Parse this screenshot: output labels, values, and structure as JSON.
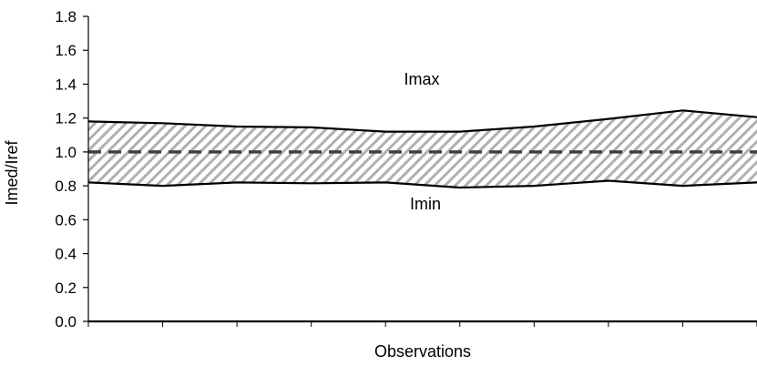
{
  "chart_data": {
    "type": "area",
    "title": "",
    "xlabel": "Observations",
    "ylabel": "Imed/Iref",
    "ylim": [
      0.0,
      1.8
    ],
    "yticks": [
      "0.0",
      "0.2",
      "0.4",
      "0.6",
      "0.8",
      "1.0",
      "1.2",
      "1.4",
      "1.6",
      "1.8"
    ],
    "x": [
      0,
      1,
      2,
      3,
      4,
      5,
      6,
      7,
      8,
      9
    ],
    "series": [
      {
        "name": "Imax",
        "values": [
          1.18,
          1.17,
          1.15,
          1.145,
          1.12,
          1.12,
          1.15,
          1.195,
          1.245,
          1.205
        ]
      },
      {
        "name": "Imin",
        "values": [
          0.82,
          0.8,
          0.82,
          0.815,
          0.82,
          0.79,
          0.8,
          0.83,
          0.8,
          0.82
        ]
      }
    ],
    "reference_line": 1.0,
    "band_fill": "hatched",
    "colors": {
      "lines": "#000000",
      "reference": "#404040",
      "hatch": "#b0b0b0"
    },
    "grid": false,
    "legend": "none"
  }
}
